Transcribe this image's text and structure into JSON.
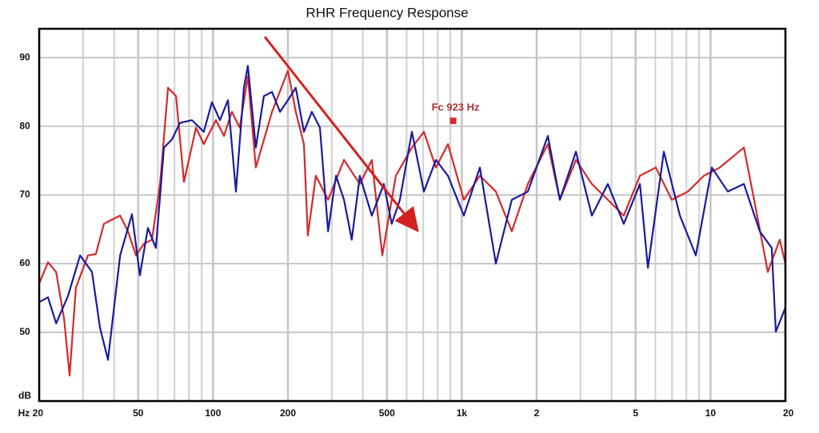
{
  "chart_data": {
    "type": "line",
    "title": "RHR Frequency Response",
    "xscale": "log",
    "xlim": [
      20,
      20000
    ],
    "ylim": [
      40,
      94.2
    ],
    "xticks": [
      {
        "value": 20,
        "label": "Hz 20"
      },
      50,
      100,
      200,
      500,
      {
        "value": 1000,
        "label": "1k"
      },
      {
        "value": 2000,
        "label": "2"
      },
      {
        "value": 5000,
        "label": "5"
      },
      {
        "value": 10000,
        "label": "10"
      },
      {
        "value": 20000,
        "label": "20"
      }
    ],
    "xminor_ticks": [
      30,
      40,
      60,
      70,
      80,
      90,
      300,
      400,
      600,
      700,
      800,
      900,
      3000,
      4000,
      6000,
      7000,
      8000,
      9000
    ],
    "yticks": [
      {
        "value": 40,
        "label": "dB"
      },
      50,
      60,
      70,
      80,
      90
    ],
    "grid": true,
    "series": [
      {
        "name": "red",
        "color": "#d42a2a",
        "x": [
          20,
          21.7,
          23.4,
          25.2,
          26.5,
          28.1,
          31.4,
          33.8,
          36.4,
          39.2,
          42.3,
          45.5,
          49,
          52.7,
          56.8,
          61.2,
          65.9,
          71,
          76.4,
          85.4,
          91.8,
          102.7,
          110.6,
          119,
          128,
          138,
          148.6,
          172.6,
          200,
          215,
          232,
          240.5,
          259,
          290,
          336,
          389,
          435,
          479,
          543,
          630,
          704,
          787,
          880,
          1019,
          1182,
          1371,
          1589,
          1844,
          2218,
          2479,
          2877,
          3334,
          3866,
          4480,
          5200,
          6026,
          6986,
          8110,
          9400,
          10900,
          13620,
          15200,
          16990,
          18980,
          20000
        ],
        "values": [
          57.1,
          60.2,
          58.8,
          51.9,
          43.7,
          56.5,
          61.2,
          61.4,
          65.8,
          66.4,
          67.0,
          64.7,
          61.2,
          62.9,
          63.5,
          71.6,
          85.6,
          84.4,
          71.9,
          79.8,
          77.4,
          80.9,
          78.6,
          82.1,
          79.8,
          87.3,
          74.0,
          82.1,
          88.1,
          82.1,
          77.4,
          64.1,
          72.8,
          69.3,
          75.1,
          71.6,
          75.1,
          61.2,
          72.8,
          76.9,
          79.2,
          74.0,
          77.4,
          69.3,
          72.8,
          70.5,
          64.7,
          71.6,
          77.4,
          69.3,
          75.1,
          71.6,
          69.3,
          67.0,
          72.8,
          74.0,
          69.3,
          70.5,
          72.8,
          74.0,
          76.9,
          68.1,
          58.8,
          63.5,
          60.0
        ]
      },
      {
        "name": "blue",
        "color": "#1a1a9e",
        "x": [
          20,
          21.7,
          23.4,
          26.1,
          29.2,
          32.6,
          35.1,
          37.8,
          42.3,
          47.2,
          50.8,
          54.7,
          58.9,
          63.5,
          68.4,
          73.6,
          82.2,
          91.8,
          99,
          106.6,
          114.8,
          123.6,
          133,
          138,
          148.6,
          160,
          172.6,
          185.8,
          200,
          215,
          232,
          249.5,
          269,
          290,
          312,
          336,
          361,
          389,
          435,
          486,
          523,
          564,
          630,
          704,
          787,
          880,
          1019,
          1182,
          1371,
          1589,
          1844,
          2218,
          2479,
          2877,
          3334,
          3866,
          4480,
          5200,
          5600,
          6490,
          7530,
          8730,
          10120,
          11740,
          13620,
          15780,
          17620,
          18300,
          20000
        ],
        "values": [
          54.4,
          55.1,
          51.3,
          55.3,
          61.2,
          58.8,
          50.7,
          46.0,
          61.2,
          67.2,
          58.3,
          65.2,
          62.3,
          76.9,
          78.1,
          80.5,
          80.9,
          79.2,
          83.5,
          80.9,
          83.8,
          70.5,
          85.6,
          88.8,
          76.9,
          84.4,
          85.0,
          82.1,
          83.8,
          85.6,
          79.2,
          82.1,
          79.8,
          64.7,
          72.8,
          69.3,
          63.5,
          72.8,
          67.0,
          71.6,
          65.8,
          69.3,
          79.2,
          70.5,
          75.1,
          72.8,
          67.0,
          74.0,
          60.0,
          69.3,
          70.5,
          78.6,
          69.3,
          76.3,
          67.0,
          71.6,
          65.8,
          71.6,
          59.4,
          76.3,
          67.0,
          61.2,
          74.0,
          70.5,
          71.6,
          64.7,
          62.3,
          50.1,
          53.6
        ]
      }
    ],
    "annotations": [
      {
        "text": "Fc 923 Hz",
        "x": 923,
        "y": 80.8,
        "color": "#b03030"
      }
    ]
  }
}
